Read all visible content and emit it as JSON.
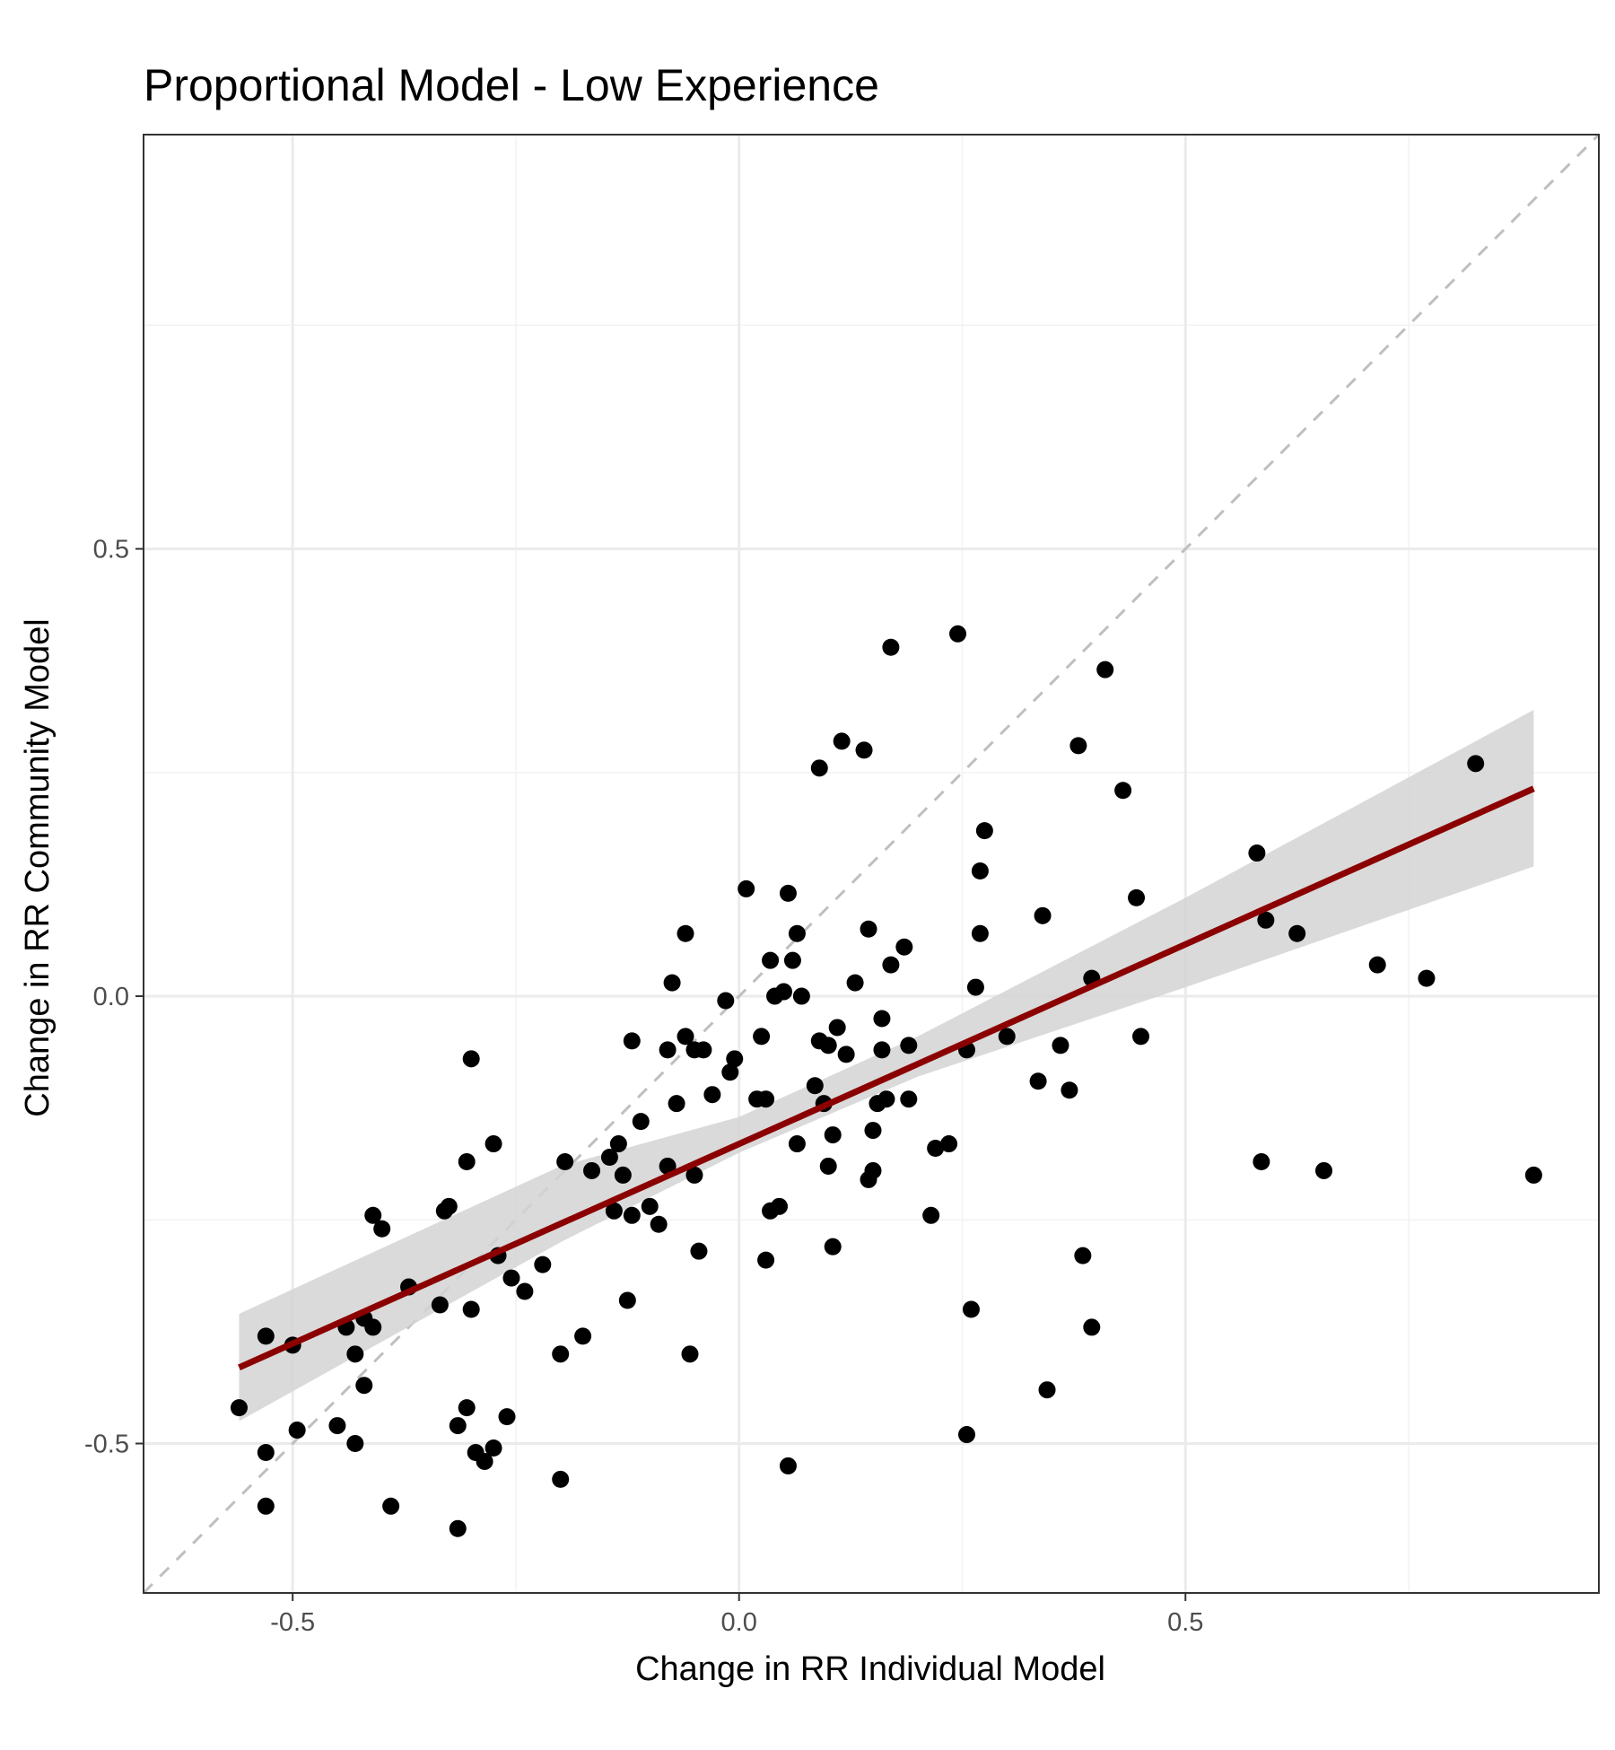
{
  "chart_data": {
    "type": "scatter",
    "title": "Proportional Model - Low Experience",
    "xlabel": "Change in RR Individual Model",
    "ylabel": "Change in RR Community Model",
    "xlim": [
      -0.667,
      0.963
    ],
    "ylim": [
      -0.667,
      0.963
    ],
    "xticks": [
      -0.5,
      0.0,
      0.5
    ],
    "yticks": [
      -0.5,
      0.0,
      0.5
    ],
    "xtick_labels": [
      "-0.5",
      "0.0",
      "0.5"
    ],
    "ytick_labels": [
      "-0.5",
      "0.0",
      "0.5"
    ],
    "grid": true,
    "reference_line": {
      "type": "identity",
      "style": "dashed",
      "color": "#bfbfbf"
    },
    "fit_line": {
      "x": [
        -0.56,
        0.89
      ],
      "y": [
        -0.415,
        0.232
      ],
      "color": "#8b0000"
    },
    "confidence_band": {
      "x": [
        -0.56,
        -0.2,
        0.0,
        0.2,
        0.5,
        0.89
      ],
      "lower": [
        -0.475,
        -0.275,
        -0.175,
        -0.09,
        0.01,
        0.145
      ],
      "upper": [
        -0.355,
        -0.19,
        -0.135,
        -0.045,
        0.11,
        0.32
      ],
      "color": "#d3d3d3"
    },
    "points": [
      [
        -0.56,
        -0.46
      ],
      [
        -0.53,
        -0.38
      ],
      [
        -0.53,
        -0.51
      ],
      [
        -0.53,
        -0.57
      ],
      [
        -0.5,
        -0.39
      ],
      [
        -0.495,
        -0.485
      ],
      [
        -0.45,
        -0.48
      ],
      [
        -0.44,
        -0.37
      ],
      [
        -0.43,
        -0.4
      ],
      [
        -0.43,
        -0.5
      ],
      [
        -0.42,
        -0.435
      ],
      [
        -0.42,
        -0.36
      ],
      [
        -0.41,
        -0.37
      ],
      [
        -0.41,
        -0.245
      ],
      [
        -0.4,
        -0.26
      ],
      [
        -0.39,
        -0.57
      ],
      [
        -0.37,
        -0.325
      ],
      [
        -0.335,
        -0.345
      ],
      [
        -0.33,
        -0.24
      ],
      [
        -0.325,
        -0.235
      ],
      [
        -0.315,
        -0.595
      ],
      [
        -0.315,
        -0.48
      ],
      [
        -0.305,
        -0.46
      ],
      [
        -0.305,
        -0.185
      ],
      [
        -0.3,
        -0.07
      ],
      [
        -0.3,
        -0.35
      ],
      [
        -0.295,
        -0.51
      ],
      [
        -0.285,
        -0.52
      ],
      [
        -0.275,
        -0.505
      ],
      [
        -0.275,
        -0.165
      ],
      [
        -0.27,
        -0.29
      ],
      [
        -0.26,
        -0.47
      ],
      [
        -0.255,
        -0.315
      ],
      [
        -0.24,
        -0.33
      ],
      [
        -0.22,
        -0.3
      ],
      [
        -0.2,
        -0.4
      ],
      [
        -0.2,
        -0.54
      ],
      [
        -0.195,
        -0.185
      ],
      [
        -0.175,
        -0.38
      ],
      [
        -0.165,
        -0.195
      ],
      [
        -0.145,
        -0.18
      ],
      [
        -0.14,
        -0.24
      ],
      [
        -0.135,
        -0.165
      ],
      [
        -0.13,
        -0.2
      ],
      [
        -0.125,
        -0.34
      ],
      [
        -0.12,
        -0.245
      ],
      [
        -0.12,
        -0.05
      ],
      [
        -0.11,
        -0.14
      ],
      [
        -0.1,
        -0.235
      ],
      [
        -0.09,
        -0.255
      ],
      [
        -0.08,
        -0.19
      ],
      [
        -0.08,
        -0.06
      ],
      [
        -0.075,
        0.015
      ],
      [
        -0.07,
        -0.12
      ],
      [
        -0.06,
        -0.045
      ],
      [
        -0.06,
        0.07
      ],
      [
        -0.055,
        -0.4
      ],
      [
        -0.05,
        -0.06
      ],
      [
        -0.05,
        -0.2
      ],
      [
        -0.045,
        -0.285
      ],
      [
        -0.04,
        -0.06
      ],
      [
        -0.03,
        -0.11
      ],
      [
        -0.015,
        -0.005
      ],
      [
        -0.01,
        -0.085
      ],
      [
        -0.005,
        -0.07
      ],
      [
        0.008,
        0.12
      ],
      [
        0.02,
        -0.115
      ],
      [
        0.025,
        -0.045
      ],
      [
        0.03,
        -0.115
      ],
      [
        0.035,
        0.04
      ],
      [
        0.03,
        -0.295
      ],
      [
        0.035,
        -0.24
      ],
      [
        0.04,
        0.0
      ],
      [
        0.045,
        -0.235
      ],
      [
        0.05,
        0.005
      ],
      [
        0.055,
        0.115
      ],
      [
        0.06,
        0.04
      ],
      [
        0.065,
        -0.165
      ],
      [
        0.065,
        0.07
      ],
      [
        0.07,
        0.0
      ],
      [
        0.055,
        -0.525
      ],
      [
        0.085,
        -0.1
      ],
      [
        0.09,
        0.255
      ],
      [
        0.09,
        -0.05
      ],
      [
        0.095,
        -0.12
      ],
      [
        0.1,
        -0.055
      ],
      [
        0.1,
        -0.19
      ],
      [
        0.105,
        -0.155
      ],
      [
        0.105,
        -0.28
      ],
      [
        0.11,
        -0.035
      ],
      [
        0.115,
        0.285
      ],
      [
        0.12,
        -0.065
      ],
      [
        0.13,
        0.015
      ],
      [
        0.14,
        0.275
      ],
      [
        0.145,
        -0.205
      ],
      [
        0.145,
        0.075
      ],
      [
        0.15,
        -0.15
      ],
      [
        0.15,
        -0.195
      ],
      [
        0.155,
        -0.12
      ],
      [
        0.16,
        -0.025
      ],
      [
        0.16,
        -0.06
      ],
      [
        0.165,
        -0.115
      ],
      [
        0.17,
        0.39
      ],
      [
        0.17,
        0.035
      ],
      [
        0.185,
        0.055
      ],
      [
        0.19,
        -0.055
      ],
      [
        0.19,
        -0.115
      ],
      [
        0.215,
        -0.245
      ],
      [
        0.22,
        -0.17
      ],
      [
        0.235,
        -0.165
      ],
      [
        0.245,
        0.405
      ],
      [
        0.255,
        -0.06
      ],
      [
        0.255,
        -0.49
      ],
      [
        0.26,
        -0.35
      ],
      [
        0.265,
        0.01
      ],
      [
        0.27,
        0.14
      ],
      [
        0.27,
        0.07
      ],
      [
        0.275,
        0.185
      ],
      [
        0.3,
        -0.045
      ],
      [
        0.335,
        -0.095
      ],
      [
        0.34,
        0.09
      ],
      [
        0.345,
        -0.44
      ],
      [
        0.36,
        -0.055
      ],
      [
        0.37,
        -0.105
      ],
      [
        0.38,
        0.28
      ],
      [
        0.385,
        -0.29
      ],
      [
        0.395,
        0.02
      ],
      [
        0.395,
        -0.37
      ],
      [
        0.41,
        0.365
      ],
      [
        0.43,
        0.23
      ],
      [
        0.445,
        0.11
      ],
      [
        0.45,
        -0.045
      ],
      [
        0.58,
        0.16
      ],
      [
        0.585,
        -0.185
      ],
      [
        0.59,
        0.085
      ],
      [
        0.625,
        0.07
      ],
      [
        0.655,
        -0.195
      ],
      [
        0.715,
        0.035
      ],
      [
        0.77,
        0.02
      ],
      [
        0.825,
        0.26
      ],
      [
        0.89,
        -0.2
      ]
    ]
  }
}
